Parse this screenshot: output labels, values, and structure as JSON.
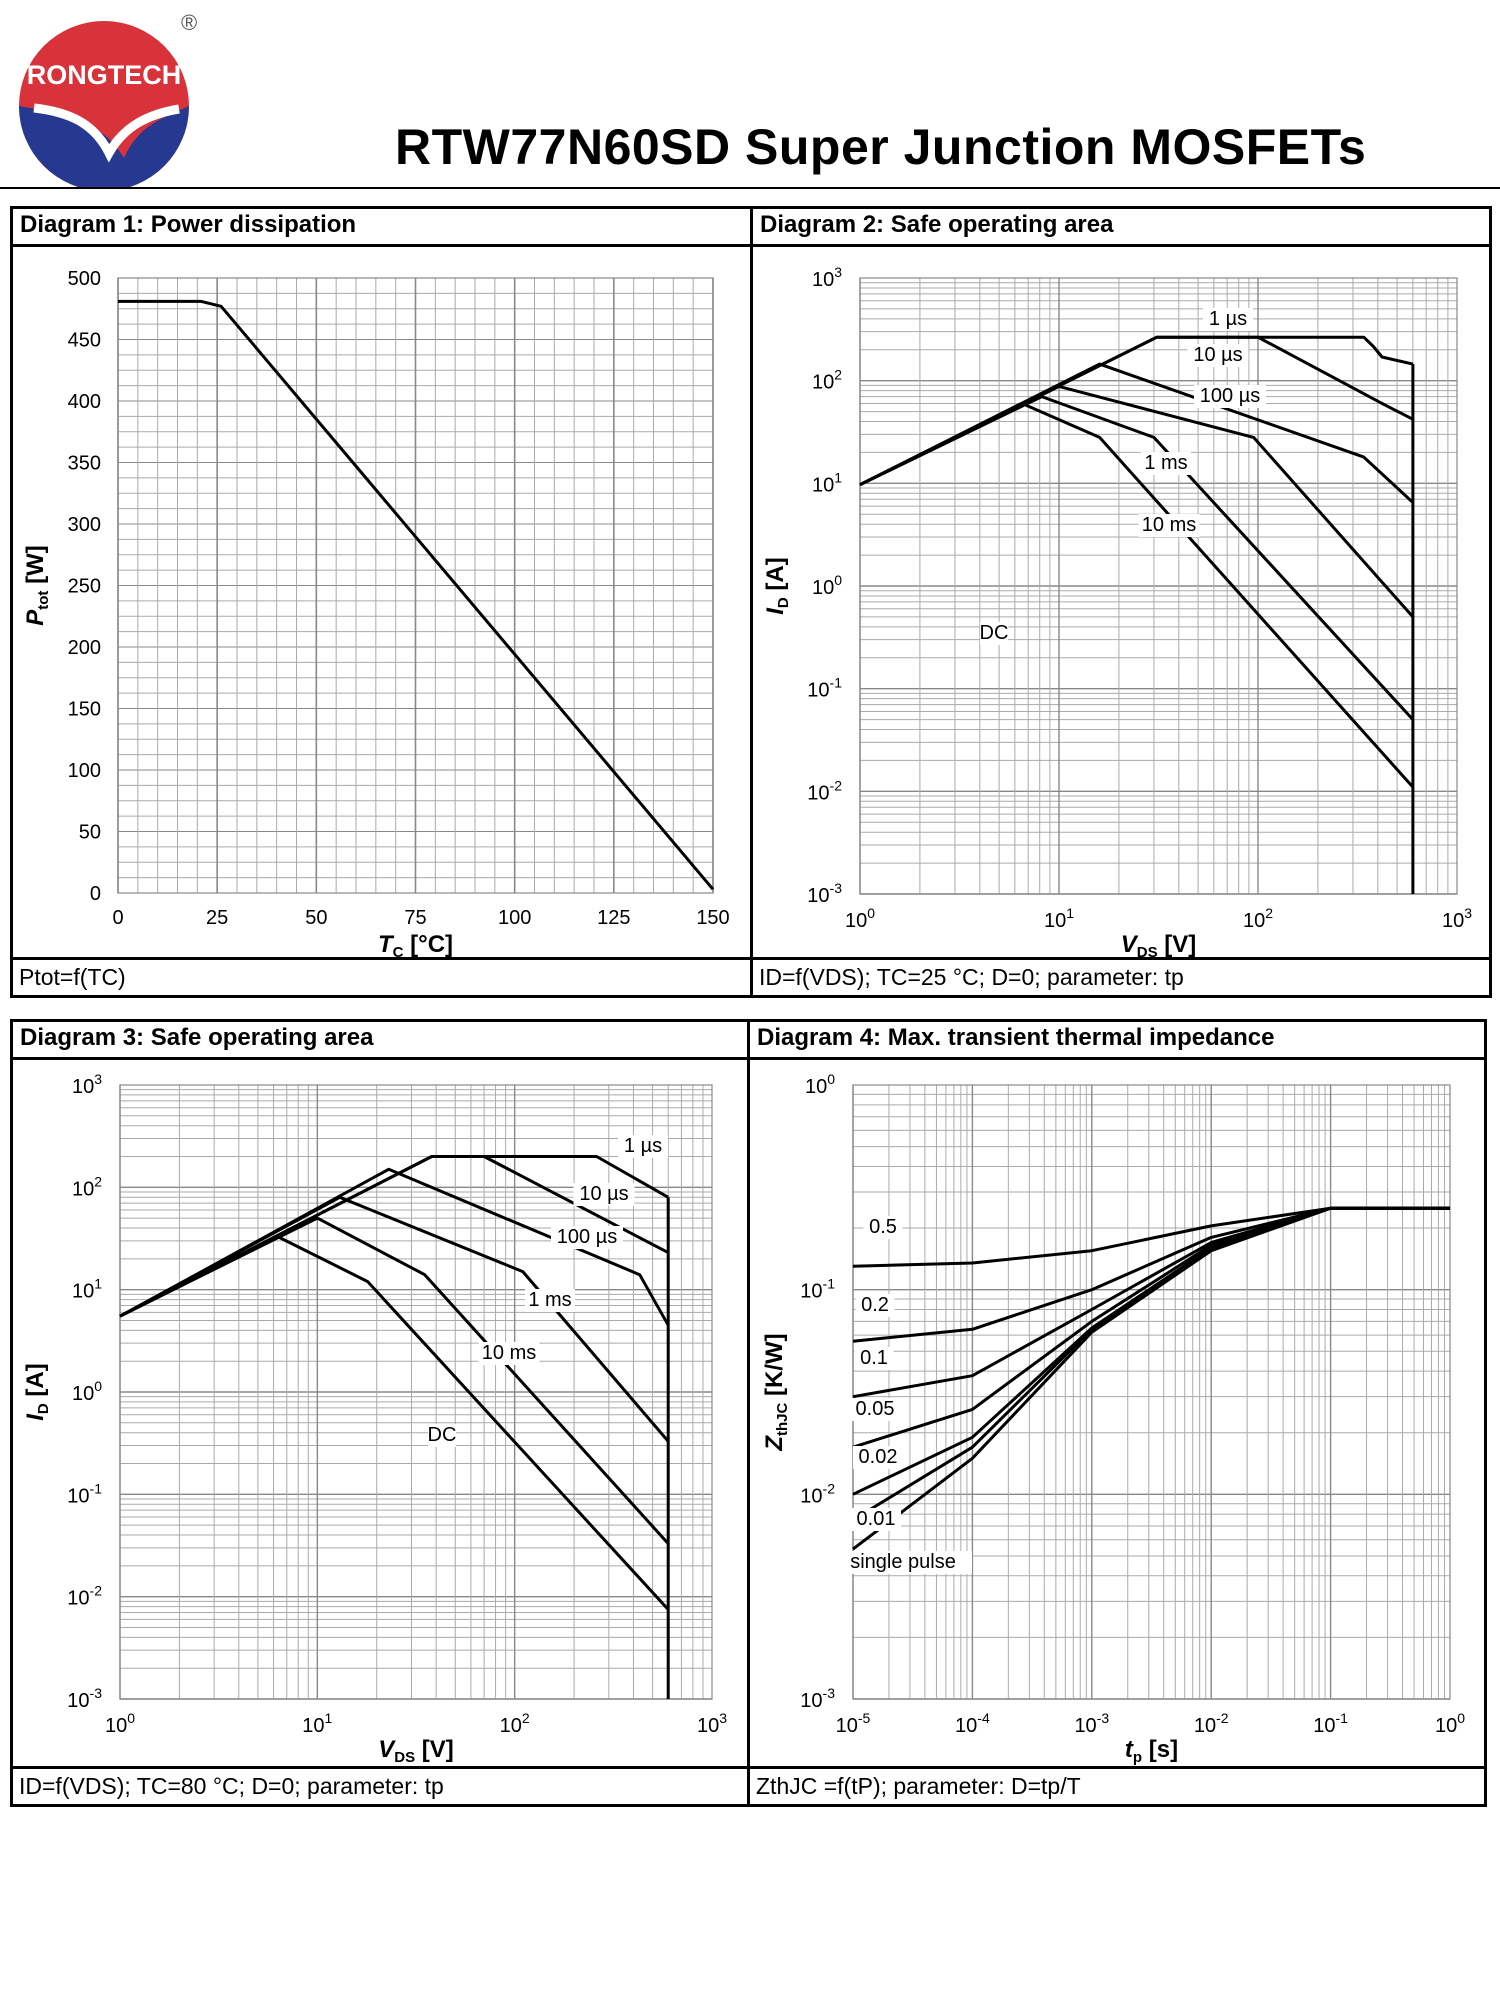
{
  "header": {
    "brand": "RONGTECH",
    "registered_mark": "®",
    "title": "RTW77N60SD Super Junction MOSFETs",
    "colors": {
      "brand_red": "#d8323a",
      "brand_blue": "#24398f"
    }
  },
  "diagrams": [
    {
      "title": "Diagram 1: Power dissipation",
      "caption": "Ptot=f(TC)",
      "xlabel": "TC [°C]",
      "ylabel": "Ptot [W]"
    },
    {
      "title": "Diagram 2: Safe operating area",
      "caption": "ID=f(VDS); TC=25 °C; D=0; parameter: tp",
      "xlabel": "VDS [V]",
      "ylabel": "ID [A]"
    },
    {
      "title": "Diagram 3: Safe operating area",
      "caption": "ID=f(VDS); TC=80 °C; D=0; parameter: tp",
      "xlabel": "VDS [V]",
      "ylabel": "ID [A]"
    },
    {
      "title": "Diagram 4: Max. transient thermal impedance",
      "caption": "ZthJC =f(tP); parameter: D=tp/T",
      "xlabel": "tp [s]",
      "ylabel": "ZthJC [K/W]"
    }
  ],
  "chart_data": [
    {
      "type": "line",
      "title": "Diagram 1: Power dissipation",
      "xlabel": "TC [°C]",
      "ylabel": "Ptot [W]",
      "xlim": [
        0,
        150
      ],
      "ylim": [
        0,
        500
      ],
      "x_ticks": [
        0,
        25,
        50,
        75,
        100,
        125,
        150
      ],
      "y_ticks": [
        0,
        50,
        100,
        150,
        200,
        250,
        300,
        350,
        400,
        450,
        500
      ],
      "series": [
        {
          "name": "Ptot",
          "x": [
            0,
            21,
            26,
            150
          ],
          "y": [
            481,
            481,
            477,
            3
          ]
        }
      ]
    },
    {
      "type": "line",
      "title": "Diagram 2: Safe operating area",
      "xlabel": "VDS [V]",
      "ylabel": "ID [A]",
      "xscale": "log",
      "yscale": "log",
      "xlim": [
        1,
        1000
      ],
      "ylim": [
        0.001,
        1000
      ],
      "x_ticks": [
        "10^0",
        "10^1",
        "10^2",
        "10^3"
      ],
      "y_ticks": [
        "10^-3",
        "10^-2",
        "10^-1",
        "10^0",
        "10^1",
        "10^2",
        "10^3"
      ],
      "series": [
        {
          "name": "1 µs",
          "x": [
            1,
            31,
            340,
            380,
            420,
            600
          ],
          "y": [
            9.7,
            265,
            265,
            215,
            170,
            145
          ]
        },
        {
          "name": "10 µs",
          "x": [
            1,
            31,
            100,
            420,
            600
          ],
          "y": [
            9.7,
            265,
            265,
            60,
            42
          ]
        },
        {
          "name": "100 µs",
          "x": [
            1,
            16,
            340,
            600
          ],
          "y": [
            9.7,
            145,
            18,
            6.5
          ]
        },
        {
          "name": "1 ms",
          "x": [
            1,
            10,
            95,
            600
          ],
          "y": [
            9.7,
            88,
            28,
            0.5
          ]
        },
        {
          "name": "10 ms",
          "x": [
            1,
            8.2,
            30,
            600
          ],
          "y": [
            9.7,
            70,
            28,
            0.05
          ]
        },
        {
          "name": "DC",
          "x": [
            1,
            6.5,
            16,
            600
          ],
          "y": [
            9.7,
            60,
            28,
            0.011
          ]
        },
        {
          "name": "VDS limit",
          "x": [
            600,
            600
          ],
          "y": [
            145,
            0.001
          ]
        }
      ],
      "labels": [
        "1 µs",
        "10 µs",
        "100 µs",
        "1 ms",
        "10 ms",
        "DC"
      ]
    },
    {
      "type": "line",
      "title": "Diagram 3: Safe operating area",
      "xlabel": "VDS [V]",
      "ylabel": "ID [A]",
      "xscale": "log",
      "yscale": "log",
      "xlim": [
        1,
        1000
      ],
      "ylim": [
        0.001,
        1000
      ],
      "x_ticks": [
        "10^0",
        "10^1",
        "10^2",
        "10^3"
      ],
      "y_ticks": [
        "10^-3",
        "10^-2",
        "10^-1",
        "10^0",
        "10^1",
        "10^2",
        "10^3"
      ],
      "series": [
        {
          "name": "1 µs",
          "x": [
            1,
            38,
            260,
            600
          ],
          "y": [
            5.5,
            200,
            200,
            80
          ]
        },
        {
          "name": "10 µs",
          "x": [
            1,
            38,
            70,
            600
          ],
          "y": [
            5.5,
            200,
            200,
            23
          ]
        },
        {
          "name": "100 µs",
          "x": [
            1,
            23,
            430,
            600
          ],
          "y": [
            5.5,
            150,
            14,
            4.5
          ]
        },
        {
          "name": "1 ms",
          "x": [
            1,
            13,
            110,
            600
          ],
          "y": [
            5.5,
            80,
            15,
            0.33
          ]
        },
        {
          "name": "10 ms",
          "x": [
            1,
            10,
            35,
            600
          ],
          "y": [
            5.5,
            50,
            14,
            0.033
          ]
        },
        {
          "name": "DC",
          "x": [
            1,
            6.3,
            18,
            600
          ],
          "y": [
            5.5,
            33,
            12,
            0.0075
          ]
        },
        {
          "name": "VDS limit",
          "x": [
            600,
            600
          ],
          "y": [
            80,
            0.001
          ]
        }
      ],
      "labels": [
        "1 µs",
        "10 µs",
        "100 µs",
        "1 ms",
        "10 ms",
        "DC"
      ]
    },
    {
      "type": "line",
      "title": "Diagram 4: Max. transient thermal impedance",
      "xlabel": "tp [s]",
      "ylabel": "ZthJC [K/W]",
      "xscale": "log",
      "yscale": "log",
      "xlim": [
        1e-05,
        1
      ],
      "ylim": [
        0.001,
        1
      ],
      "x_ticks": [
        "10^-5",
        "10^-4",
        "10^-3",
        "10^-2",
        "10^-1",
        "10^0"
      ],
      "y_ticks": [
        "10^-3",
        "10^-2",
        "10^-1",
        "10^0"
      ],
      "series": [
        {
          "name": "0.5",
          "x": [
            1e-05,
            0.0001,
            0.001,
            0.01,
            0.1,
            1
          ],
          "y": [
            0.13,
            0.135,
            0.155,
            0.205,
            0.25,
            0.25
          ]
        },
        {
          "name": "0.2",
          "x": [
            1e-05,
            0.0001,
            0.001,
            0.01,
            0.1,
            1
          ],
          "y": [
            0.056,
            0.064,
            0.1,
            0.18,
            0.25,
            0.25
          ]
        },
        {
          "name": "0.1",
          "x": [
            1e-05,
            0.0001,
            0.001,
            0.01,
            0.1,
            1
          ],
          "y": [
            0.03,
            0.038,
            0.08,
            0.17,
            0.25,
            0.25
          ]
        },
        {
          "name": "0.05",
          "x": [
            1e-05,
            0.0001,
            0.001,
            0.01,
            0.1,
            1
          ],
          "y": [
            0.017,
            0.026,
            0.07,
            0.165,
            0.25,
            0.25
          ]
        },
        {
          "name": "0.02",
          "x": [
            1e-05,
            0.0001,
            0.001,
            0.01,
            0.1,
            1
          ],
          "y": [
            0.01,
            0.019,
            0.065,
            0.16,
            0.25,
            0.25
          ]
        },
        {
          "name": "0.01",
          "x": [
            1e-05,
            0.0001,
            0.001,
            0.01,
            0.1,
            1
          ],
          "y": [
            0.0075,
            0.017,
            0.064,
            0.158,
            0.25,
            0.25
          ]
        },
        {
          "name": "single pulse",
          "x": [
            1e-05,
            0.0001,
            0.001,
            0.01,
            0.1,
            1
          ],
          "y": [
            0.0054,
            0.015,
            0.062,
            0.155,
            0.25,
            0.25
          ]
        }
      ],
      "labels": [
        "0.5",
        "0.2",
        "0.1",
        "0.05",
        "0.02",
        "0.01",
        "single pulse"
      ]
    }
  ]
}
